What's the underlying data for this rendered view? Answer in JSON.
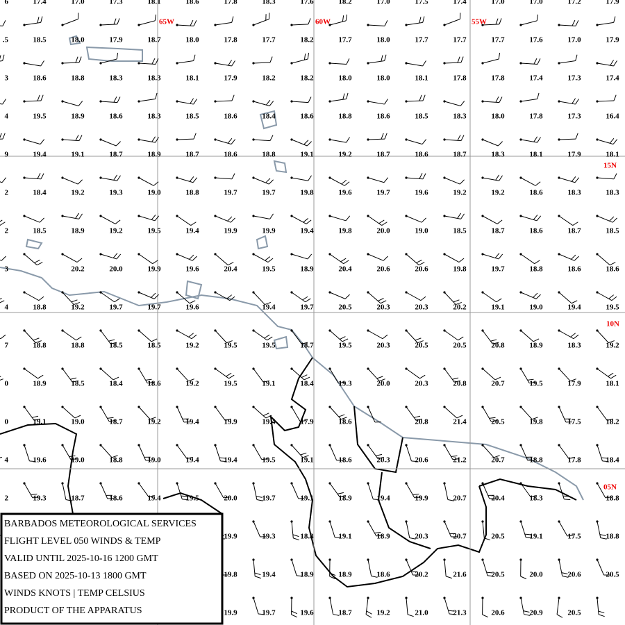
{
  "grid_labels": {
    "longitudes": [
      "65W",
      "60W",
      "55W"
    ],
    "latitudes": [
      "15N",
      "10N",
      "05N"
    ]
  },
  "edge_fragments": [
    "6",
    ".5",
    "3",
    "4",
    "9",
    "2",
    "2",
    "3",
    "4",
    "7",
    "0",
    "0",
    "4",
    "2"
  ],
  "grid": {
    "rows": [
      [
        "17.4",
        "17.0",
        "17.3",
        "18.1",
        "18.6",
        "17.8",
        "18.3",
        "17.6",
        "18.2",
        "17.0",
        "17.5",
        "17.4",
        "17.0",
        "17.0",
        "17.2",
        "17.9"
      ],
      [
        "18.5",
        "18.0",
        "17.9",
        "18.7",
        "18.0",
        "17.8",
        "17.7",
        "18.2",
        "17.7",
        "18.0",
        "17.7",
        "17.7",
        "17.7",
        "17.6",
        "17.0",
        "17.9"
      ],
      [
        "18.6",
        "18.8",
        "18.3",
        "18.3",
        "18.1",
        "17.9",
        "18.2",
        "18.2",
        "18.0",
        "18.0",
        "18.1",
        "17.8",
        "17.8",
        "17.4",
        "17.3",
        "17.4"
      ],
      [
        "19.5",
        "18.9",
        "18.6",
        "18.3",
        "18.5",
        "18.6",
        "18.4",
        "18.6",
        "18.8",
        "18.6",
        "18.5",
        "18.3",
        "18.0",
        "17.8",
        "17.3",
        "16.4"
      ],
      [
        "19.4",
        "19.1",
        "18.7",
        "18.9",
        "18.7",
        "18.6",
        "18.8",
        "19.1",
        "19.2",
        "18.7",
        "18.6",
        "18.7",
        "18.3",
        "18.1",
        "17.9",
        "18.1"
      ],
      [
        "18.4",
        "19.2",
        "19.3",
        "19.0",
        "18.8",
        "19.7",
        "19.7",
        "19.8",
        "19.6",
        "19.7",
        "19.6",
        "19.2",
        "19.2",
        "18.6",
        "18.3",
        "18.3"
      ],
      [
        "18.5",
        "18.9",
        "19.2",
        "19.5",
        "19.4",
        "19.9",
        "19.9",
        "19.4",
        "19.8",
        "20.0",
        "19.0",
        "18.5",
        "18.7",
        "18.6",
        "18.7",
        "18.5"
      ],
      [
        null,
        "20.2",
        "20.0",
        "19.9",
        "19.6",
        "20.4",
        "19.5",
        "18.9",
        "20.4",
        "20.6",
        "20.6",
        "19.8",
        "19.7",
        "18.8",
        "18.6",
        "18.6"
      ],
      [
        "18.8",
        "19.2",
        "19.7",
        "19.7",
        "19.6",
        null,
        "19.4",
        "19.7",
        "20.5",
        "20.3",
        "20.3",
        "20.2",
        "19.1",
        "19.0",
        "19.4",
        "19.5"
      ],
      [
        "18.8",
        "18.8",
        "18.5",
        "18.5",
        "19.2",
        "19.5",
        "19.5",
        "18.7",
        "19.5",
        "20.3",
        "20.5",
        "20.5",
        "20.8",
        "18.9",
        "18.3",
        "19.2"
      ],
      [
        "18.9",
        "18.5",
        "18.4",
        "18.6",
        "19.2",
        "19.5",
        "19.1",
        "18.4",
        "19.3",
        "20.0",
        "20.3",
        "20.8",
        "20.7",
        "19.5",
        "17.9",
        "18.1"
      ],
      [
        "19.1",
        "19.0",
        "18.7",
        "19.2",
        "19.4",
        "19.9",
        "19.4",
        "17.9",
        "18.6",
        null,
        "20.8",
        "21.4",
        "20.5",
        "19.8",
        "17.5",
        "18.2"
      ],
      [
        "19.6",
        "19.0",
        "18.8",
        "19.0",
        "19.4",
        "19.4",
        "19.5",
        "19.1",
        "18.6",
        "20.3",
        "20.6",
        "21.2",
        "20.7",
        "18.8",
        "17.8",
        "18.4"
      ],
      [
        "19.3",
        "18.7",
        "18.6",
        "19.4",
        "19.5",
        "20.0",
        "19.7",
        "19.1",
        "18.9",
        "19.4",
        "19.9",
        "20.7",
        "20.4",
        "18.3",
        null,
        "18.8"
      ],
      [
        null,
        null,
        null,
        null,
        null,
        "19.9",
        "19.3",
        "18.8",
        "19.1",
        "18.9",
        "20.3",
        "20.7",
        "20.5",
        "19.1",
        "17.5",
        "18.8"
      ],
      [
        null,
        null,
        null,
        null,
        null,
        "19.8",
        "19.4",
        "18.9",
        "18.9",
        "18.6",
        "20.2",
        "21.6",
        "20.5",
        "20.0",
        "20.6",
        "20.5"
      ],
      [
        null,
        null,
        null,
        null,
        null,
        "19.9",
        "19.7",
        "19.6",
        "18.7",
        "19.2",
        "21.0",
        "21.3",
        "20.6",
        "20.9",
        "20.5",
        null
      ]
    ]
  },
  "info_box": {
    "lines": [
      "BARBADOS METEOROLOGICAL SERVICES",
      "FLIGHT LEVEL 050 WINDS & TEMP",
      "VALID UNTIL 2025-10-16 1200 GMT",
      "BASED ON 2025-10-13 1800 GMT",
      "WINDS KNOTS | TEMP CELSIUS",
      "PRODUCT OF THE APPARATUS"
    ]
  }
}
